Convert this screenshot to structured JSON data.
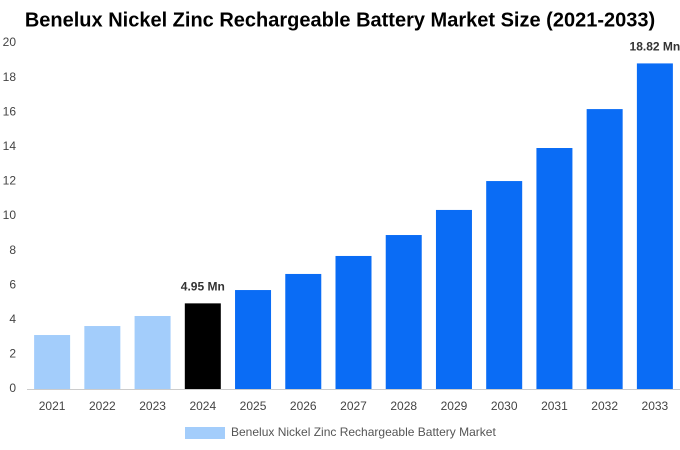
{
  "chart_data": {
    "type": "bar",
    "title": "Benelux Nickel Zinc Rechargeable Battery Market Size (2021-2033)",
    "categories": [
      "2021",
      "2022",
      "2023",
      "2024",
      "2025",
      "2026",
      "2027",
      "2028",
      "2029",
      "2030",
      "2031",
      "2032",
      "2033"
    ],
    "series": [
      {
        "name": "Benelux Nickel Zinc Rechargeable Battery Market",
        "color": "#a3cdfb",
        "values": [
          3.12,
          3.64,
          4.22,
          4.95,
          5.72,
          6.65,
          7.69,
          8.9,
          10.35,
          12.02,
          13.93,
          16.18,
          18.82
        ],
        "value_labels": [
          null,
          null,
          null,
          "4.95 Mn",
          null,
          null,
          null,
          null,
          null,
          null,
          null,
          null,
          "18.82 Mn"
        ],
        "bar_colors": [
          "#a3cdfb",
          "#a3cdfb",
          "#a3cdfb",
          "#000000",
          "#0a6cf5",
          "#0a6cf5",
          "#0a6cf5",
          "#0a6cf5",
          "#0a6cf5",
          "#0a6cf5",
          "#0a6cf5",
          "#0a6cf5",
          "#0a6cf5"
        ]
      }
    ],
    "ylim": [
      0,
      20
    ],
    "yticks": [
      0,
      2,
      4,
      6,
      8,
      10,
      12,
      14,
      16,
      18,
      20
    ],
    "grid": false
  }
}
